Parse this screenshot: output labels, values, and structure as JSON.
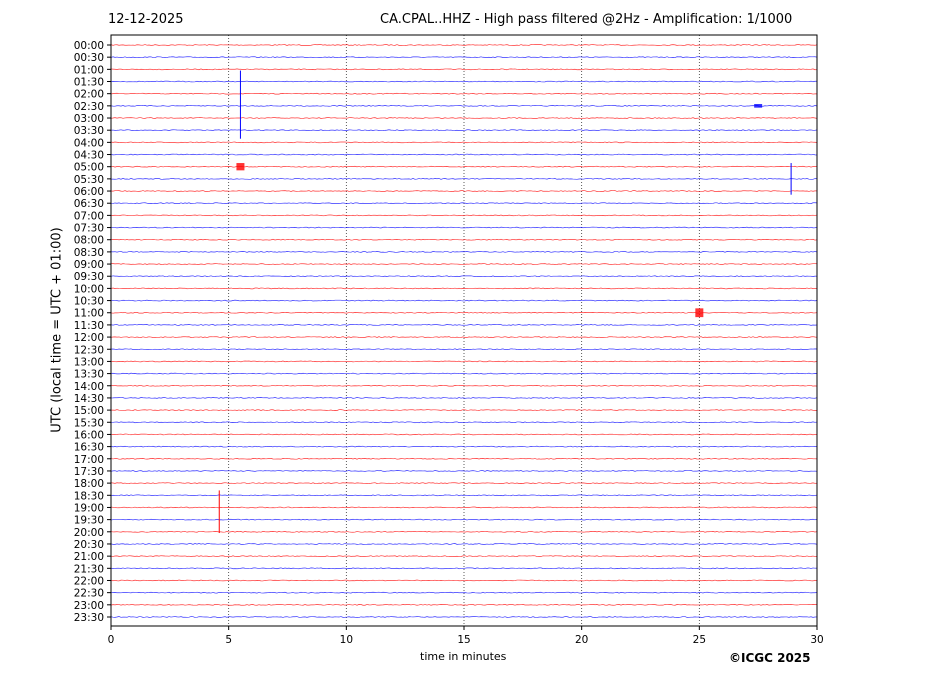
{
  "header": {
    "date": "12-12-2025",
    "title": "CA.CPAL..HHZ - High pass filtered @2Hz - Amplification: 1/1000"
  },
  "footer": {
    "copyright": "©ICGC 2025"
  },
  "chart_data": {
    "type": "line",
    "xlabel": "time in minutes",
    "ylabel": "UTC (local time = UTC + 01:00)",
    "xlim": [
      0,
      30
    ],
    "x_ticks": [
      "0",
      "5",
      "10",
      "15",
      "20",
      "25",
      "30"
    ],
    "y_ticks": [
      "00:00",
      "00:30",
      "01:00",
      "01:30",
      "02:00",
      "02:30",
      "03:00",
      "03:30",
      "04:00",
      "04:30",
      "05:00",
      "05:30",
      "06:00",
      "06:30",
      "07:00",
      "07:30",
      "08:00",
      "08:30",
      "09:00",
      "09:30",
      "10:00",
      "10:30",
      "11:00",
      "11:30",
      "12:00",
      "12:30",
      "13:00",
      "13:30",
      "14:00",
      "14:30",
      "15:00",
      "15:30",
      "16:00",
      "16:30",
      "17:00",
      "17:30",
      "18:00",
      "18:30",
      "19:00",
      "19:30",
      "20:00",
      "20:30",
      "21:00",
      "21:30",
      "22:00",
      "22:30",
      "23:00",
      "23:30"
    ],
    "trace_colors": [
      "#ff0000",
      "#0000ff"
    ],
    "vertical_grid": "dotted at 5-minute intervals",
    "events": [
      {
        "trace": "01:30",
        "minute": 5.5,
        "amplitude_traces_up": 0.9,
        "amplitude_traces_down": 4.7,
        "color": "#0000ff"
      },
      {
        "trace": "05:30",
        "minute": 28.9,
        "amplitude_traces_up": 1.3,
        "amplitude_traces_down": 1.3,
        "color": "#0000ff"
      },
      {
        "trace": "19:00",
        "minute": 4.6,
        "amplitude_traces_up": 1.4,
        "amplitude_traces_down": 2.1,
        "color": "#ff0000"
      },
      {
        "trace": "05:00",
        "minute": 5.5,
        "amplitude_traces_up": 0.1,
        "amplitude_traces_down": 0.1,
        "color": "#ff0000"
      },
      {
        "trace": "11:00",
        "minute": 25.0,
        "amplitude_traces_up": 0.12,
        "amplitude_traces_down": 0.12,
        "color": "#ff0000"
      },
      {
        "trace": "02:30",
        "minute": 27.5,
        "amplitude_traces_up": 0.05,
        "amplitude_traces_down": 0.05,
        "color": "#0000ff"
      }
    ]
  }
}
